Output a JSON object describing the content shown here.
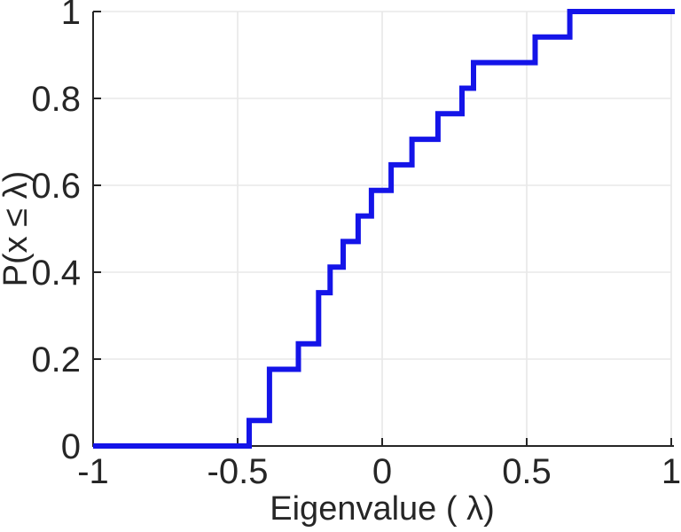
{
  "figure": {
    "background": "#ffffff"
  },
  "chart_data": {
    "type": "line",
    "subtype": "empirical-cdf-stairs",
    "title": "",
    "xlabel": "Eigenvalue (  λ)",
    "ylabel": "P(x ≤ λ)",
    "xlim": [
      -1,
      1
    ],
    "ylim": [
      0,
      1
    ],
    "grid": true,
    "legend_position": "none",
    "n_samples": 17,
    "line_color": "#1414e8",
    "axis_color": "#262626",
    "grid_color": "#e8e8e8",
    "tick_label_color": "#262626",
    "xticks": [
      {
        "v": -1,
        "label": "-1"
      },
      {
        "v": -0.5,
        "label": "-0.5"
      },
      {
        "v": 0,
        "label": "0"
      },
      {
        "v": 0.5,
        "label": "0.5"
      },
      {
        "v": 1,
        "label": "1"
      }
    ],
    "yticks": [
      {
        "v": 0,
        "label": "0"
      },
      {
        "v": 0.2,
        "label": "0.2"
      },
      {
        "v": 0.4,
        "label": "0.4"
      },
      {
        "v": 0.6,
        "label": "0.6"
      },
      {
        "v": 0.8,
        "label": "0.8"
      },
      {
        "v": 1,
        "label": "1"
      }
    ],
    "eigenvalues": [
      -0.46,
      -0.39,
      -0.39,
      -0.29,
      -0.22,
      -0.22,
      -0.18,
      -0.135,
      -0.083,
      -0.037,
      0.031,
      0.103,
      0.193,
      0.276,
      0.316,
      0.529,
      0.649
    ],
    "steps": [
      {
        "x": -0.46,
        "y": 0.0588
      },
      {
        "x": -0.39,
        "y": 0.1765
      },
      {
        "x": -0.29,
        "y": 0.2353
      },
      {
        "x": -0.22,
        "y": 0.3529
      },
      {
        "x": -0.18,
        "y": 0.4118
      },
      {
        "x": -0.135,
        "y": 0.4706
      },
      {
        "x": -0.083,
        "y": 0.5294
      },
      {
        "x": -0.037,
        "y": 0.5882
      },
      {
        "x": 0.031,
        "y": 0.6471
      },
      {
        "x": 0.103,
        "y": 0.7059
      },
      {
        "x": 0.193,
        "y": 0.7647
      },
      {
        "x": 0.276,
        "y": 0.8235
      },
      {
        "x": 0.316,
        "y": 0.8824
      },
      {
        "x": 0.529,
        "y": 0.9412
      },
      {
        "x": 0.649,
        "y": 1.0
      }
    ]
  }
}
